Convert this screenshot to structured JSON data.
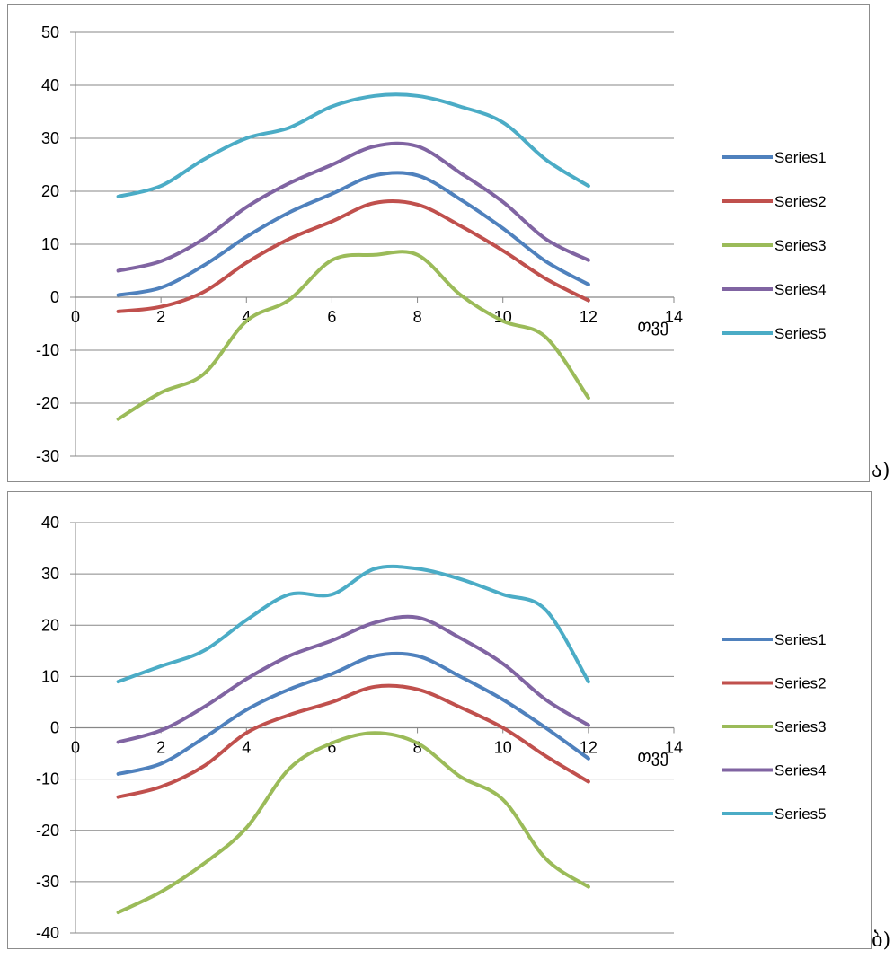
{
  "chart_data": [
    {
      "type": "line",
      "panel_label": "ა)",
      "xlabel": "თვე",
      "ylabel": "",
      "title": "",
      "xlim": [
        0,
        14
      ],
      "ylim": [
        -30,
        50
      ],
      "xticks": [
        0,
        2,
        4,
        6,
        8,
        10,
        12,
        14
      ],
      "yticks": [
        -30,
        -20,
        -10,
        0,
        10,
        20,
        30,
        40,
        50
      ],
      "grid": "horizontal",
      "legend": "right",
      "x": [
        1,
        2,
        3,
        4,
        5,
        6,
        7,
        8,
        9,
        10,
        11,
        12
      ],
      "series": [
        {
          "name": "Series1",
          "color": "#4F81BD",
          "values": [
            0.4,
            1.8,
            6.0,
            11.4,
            16.0,
            19.5,
            23.0,
            23.0,
            18.5,
            13.0,
            6.8,
            2.4
          ]
        },
        {
          "name": "Series2",
          "color": "#C0504D",
          "values": [
            -2.7,
            -1.8,
            1.0,
            6.5,
            11.0,
            14.3,
            17.8,
            17.5,
            13.5,
            8.8,
            3.5,
            -0.6
          ]
        },
        {
          "name": "Series3",
          "color": "#9BBB59",
          "values": [
            -23.0,
            -18.0,
            -14.5,
            -4.5,
            -0.5,
            7.0,
            8.0,
            8.0,
            0.5,
            -4.5,
            -7.5,
            -19.0
          ]
        },
        {
          "name": "Series4",
          "color": "#8064A2",
          "values": [
            5.0,
            6.8,
            11.0,
            17.0,
            21.5,
            25.0,
            28.5,
            28.5,
            23.5,
            18.0,
            11.0,
            7.0
          ]
        },
        {
          "name": "Series5",
          "color": "#4BACC6",
          "values": [
            19.0,
            21.0,
            26.0,
            30.0,
            32.0,
            36.0,
            38.0,
            38.0,
            36.0,
            33.0,
            26.0,
            21.0
          ]
        }
      ]
    },
    {
      "type": "line",
      "panel_label": "ბ)",
      "xlabel": "თვე",
      "ylabel": "",
      "title": "",
      "xlim": [
        0,
        14
      ],
      "ylim": [
        -40,
        40
      ],
      "xticks": [
        0,
        2,
        4,
        6,
        8,
        10,
        12,
        14
      ],
      "yticks": [
        -40,
        -30,
        -20,
        -10,
        0,
        10,
        20,
        30,
        40
      ],
      "grid": "horizontal",
      "legend": "right",
      "x": [
        1,
        2,
        3,
        4,
        5,
        6,
        7,
        8,
        9,
        10,
        11,
        12
      ],
      "series": [
        {
          "name": "Series1",
          "color": "#4F81BD",
          "values": [
            -9.0,
            -7.0,
            -2.0,
            3.5,
            7.5,
            10.5,
            14.0,
            14.0,
            10.0,
            5.5,
            0.0,
            -6.0
          ]
        },
        {
          "name": "Series2",
          "color": "#C0504D",
          "values": [
            -13.5,
            -11.5,
            -7.5,
            -1.0,
            2.5,
            5.0,
            8.0,
            7.5,
            4.0,
            0.0,
            -5.5,
            -10.5
          ]
        },
        {
          "name": "Series3",
          "color": "#9BBB59",
          "values": [
            -36.0,
            -32.0,
            -26.5,
            -19.5,
            -8.0,
            -3.0,
            -1.0,
            -3.0,
            -9.5,
            -14.0,
            -25.5,
            -31.0
          ]
        },
        {
          "name": "Series4",
          "color": "#8064A2",
          "values": [
            -2.8,
            -0.5,
            4.0,
            9.5,
            14.0,
            17.0,
            20.5,
            21.5,
            17.5,
            12.5,
            5.5,
            0.5
          ]
        },
        {
          "name": "Series5",
          "color": "#4BACC6",
          "values": [
            9.0,
            12.0,
            15.0,
            21.0,
            26.0,
            26.0,
            31.0,
            31.0,
            29.0,
            26.0,
            23.0,
            9.0
          ]
        }
      ]
    }
  ]
}
